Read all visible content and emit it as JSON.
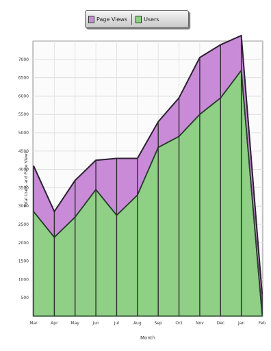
{
  "chart_data": {
    "type": "area",
    "stacked": true,
    "title": "",
    "xlabel": "Month",
    "ylabel": "Total Users and Page Views",
    "categories": [
      "Mar",
      "Apr",
      "May",
      "Jun",
      "Jul",
      "Aug",
      "Sep",
      "Oct",
      "Nov",
      "Dec",
      "Jan",
      "Feb"
    ],
    "series": [
      {
        "name": "Users",
        "color": "#8fcf86",
        "values": [
          2850,
          2150,
          2700,
          3450,
          2750,
          3300,
          4600,
          4900,
          5500,
          5950,
          6700,
          50
        ]
      },
      {
        "name": "Page Views",
        "color": "#c98bd8",
        "values": [
          1250,
          700,
          1000,
          800,
          1550,
          1000,
          700,
          1050,
          1550,
          1450,
          950,
          550
        ]
      }
    ],
    "yticks": [
      500,
      1000,
      1500,
      2000,
      2500,
      3000,
      3500,
      4000,
      4500,
      5000,
      5500,
      6000,
      6500,
      7000
    ],
    "ylim": [
      0,
      7500
    ],
    "grid": true,
    "legend_position": "top-center"
  }
}
